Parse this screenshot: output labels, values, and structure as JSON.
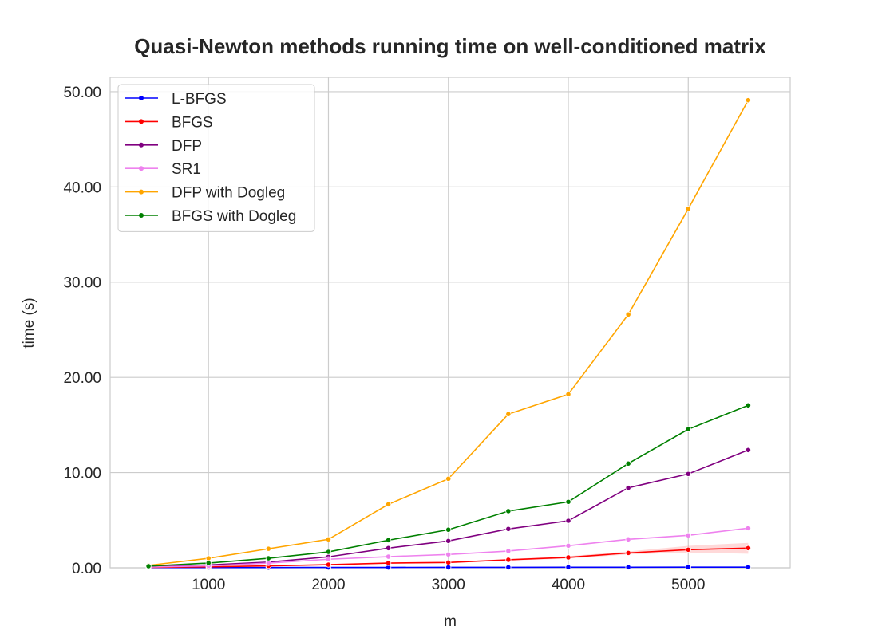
{
  "chart_data": {
    "type": "line",
    "title": "Quasi-Newton methods running time on well-conditioned matrix",
    "xlabel": "m",
    "ylabel": "time (s)",
    "x": [
      500,
      1000,
      1500,
      2000,
      2500,
      3000,
      3500,
      4000,
      4500,
      5000,
      5500
    ],
    "xlim": [
      180,
      5850
    ],
    "ylim": [
      0,
      51.5
    ],
    "xticks": [
      1000,
      2000,
      3000,
      4000,
      5000
    ],
    "xtick_labels": [
      "1000",
      "2000",
      "3000",
      "4000",
      "5000"
    ],
    "yticks": [
      0,
      10,
      20,
      30,
      40,
      50
    ],
    "ytick_labels": [
      "0.00",
      "10.00",
      "20.00",
      "30.00",
      "40.00",
      "50.00"
    ],
    "grid": true,
    "legend_position": "top-left",
    "series": [
      {
        "name": "L-BFGS",
        "color": "#0000ff",
        "values": [
          0.02,
          0.03,
          0.03,
          0.04,
          0.04,
          0.05,
          0.05,
          0.06,
          0.06,
          0.07,
          0.07
        ]
      },
      {
        "name": "BFGS",
        "color": "#ff0000",
        "values": [
          0.05,
          0.1,
          0.2,
          0.33,
          0.5,
          0.56,
          0.84,
          1.09,
          1.56,
          1.9,
          2.07
        ],
        "ci_low": [
          0.04,
          0.08,
          0.17,
          0.29,
          0.44,
          0.5,
          0.76,
          0.96,
          1.4,
          1.6,
          1.48
        ],
        "ci_high": [
          0.06,
          0.12,
          0.23,
          0.37,
          0.56,
          0.62,
          0.92,
          1.22,
          1.72,
          2.3,
          2.62
        ]
      },
      {
        "name": "DFP",
        "color": "#800080",
        "values": [
          0.1,
          0.3,
          0.6,
          1.15,
          2.07,
          2.82,
          4.08,
          4.94,
          8.4,
          9.86,
          12.37
        ]
      },
      {
        "name": "SR1",
        "color": "#ee82ee",
        "values": [
          0.08,
          0.2,
          0.5,
          0.9,
          1.17,
          1.4,
          1.76,
          2.32,
          2.99,
          3.41,
          4.16
        ]
      },
      {
        "name": "DFP with Dogleg",
        "color": "#ffa500",
        "values": [
          0.25,
          1.0,
          2.0,
          2.99,
          6.67,
          9.35,
          16.14,
          18.23,
          26.6,
          37.7,
          49.1
        ]
      },
      {
        "name": "BFGS with Dogleg",
        "color": "#008000",
        "values": [
          0.17,
          0.5,
          1.0,
          1.67,
          2.9,
          4.0,
          5.95,
          6.93,
          10.95,
          14.55,
          17.06
        ]
      }
    ]
  }
}
